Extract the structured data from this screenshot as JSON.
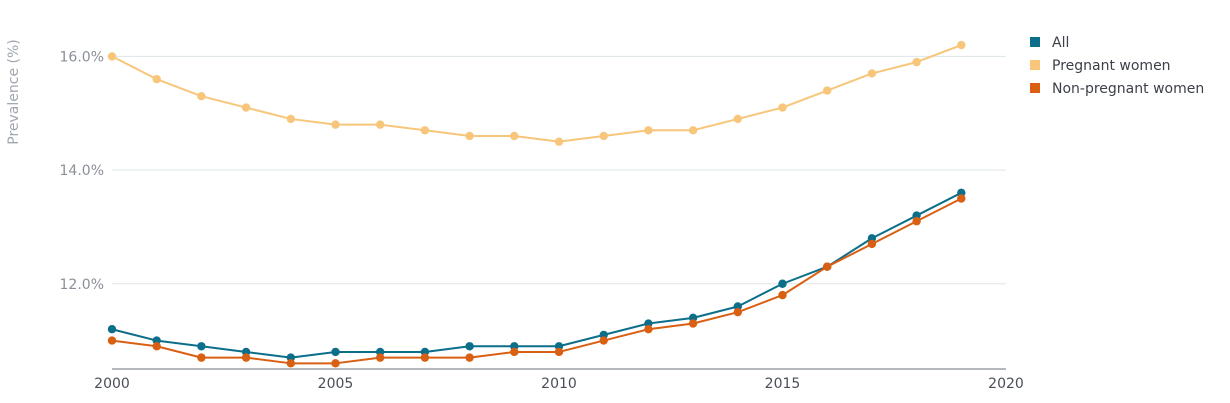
{
  "chart_data": {
    "type": "line",
    "title": "",
    "xlabel": "",
    "ylabel": "Prevalence (%)",
    "xlim": [
      2000,
      2020
    ],
    "ylim": [
      10.5,
      16.5
    ],
    "x_ticks": [
      2000,
      2005,
      2010,
      2015,
      2020
    ],
    "x_tick_labels": [
      "2000",
      "2005",
      "2010",
      "2015",
      "2020"
    ],
    "y_ticks": [
      12.0,
      14.0,
      16.0
    ],
    "y_tick_labels": [
      "12.0%",
      "14.0%",
      "16.0%"
    ],
    "grid": true,
    "legend_position": "top-right",
    "x": [
      2000,
      2001,
      2002,
      2003,
      2004,
      2005,
      2006,
      2007,
      2008,
      2009,
      2010,
      2011,
      2012,
      2013,
      2014,
      2015,
      2016,
      2017,
      2018,
      2019
    ],
    "series": [
      {
        "name": "All",
        "color": "#0d6e8a",
        "values": [
          11.2,
          11.0,
          10.9,
          10.8,
          10.7,
          10.8,
          10.8,
          10.8,
          10.9,
          10.9,
          10.9,
          11.1,
          11.3,
          11.4,
          11.6,
          12.0,
          12.3,
          12.8,
          13.2,
          13.6
        ]
      },
      {
        "name": "Pregnant women",
        "color": "#f7c67a",
        "values": [
          16.0,
          15.6,
          15.3,
          15.1,
          14.9,
          14.8,
          14.8,
          14.7,
          14.6,
          14.6,
          14.5,
          14.6,
          14.7,
          14.7,
          14.9,
          15.1,
          15.4,
          15.7,
          15.9,
          16.2
        ]
      },
      {
        "name": "Non-pregnant women",
        "color": "#d95f12",
        "values": [
          11.0,
          10.9,
          10.7,
          10.7,
          10.6,
          10.6,
          10.7,
          10.7,
          10.7,
          10.8,
          10.8,
          11.0,
          11.2,
          11.3,
          11.5,
          11.8,
          12.3,
          12.7,
          13.1,
          13.5
        ]
      }
    ]
  }
}
